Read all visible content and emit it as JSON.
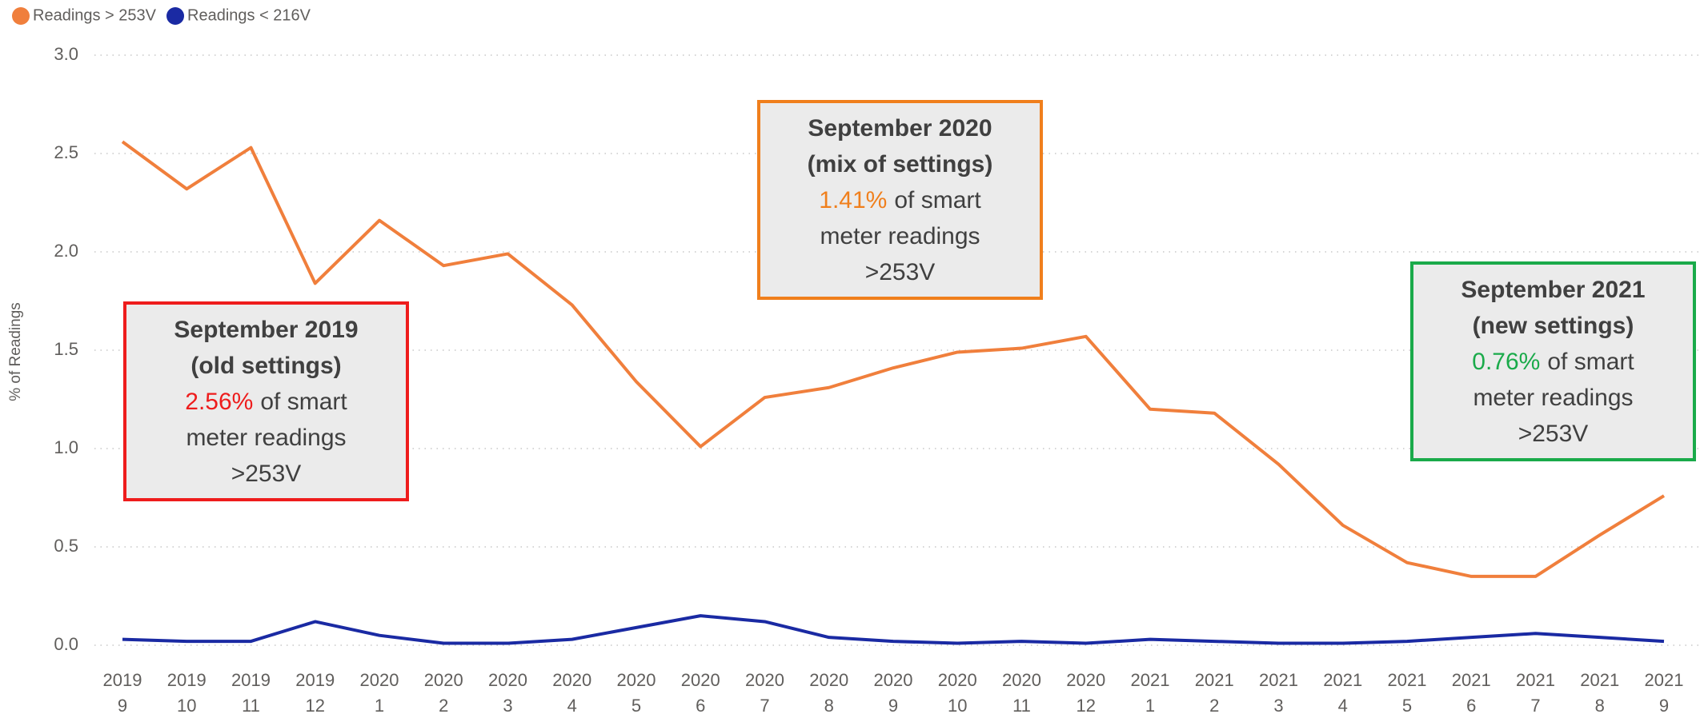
{
  "chart_data": {
    "type": "line",
    "y_label": "% of Readings",
    "categories": [
      [
        "2019",
        "9"
      ],
      [
        "2019",
        "10"
      ],
      [
        "2019",
        "11"
      ],
      [
        "2019",
        "12"
      ],
      [
        "2020",
        "1"
      ],
      [
        "2020",
        "2"
      ],
      [
        "2020",
        "3"
      ],
      [
        "2020",
        "4"
      ],
      [
        "2020",
        "5"
      ],
      [
        "2020",
        "6"
      ],
      [
        "2020",
        "7"
      ],
      [
        "2020",
        "8"
      ],
      [
        "2020",
        "9"
      ],
      [
        "2020",
        "10"
      ],
      [
        "2020",
        "11"
      ],
      [
        "2020",
        "12"
      ],
      [
        "2021",
        "1"
      ],
      [
        "2021",
        "2"
      ],
      [
        "2021",
        "3"
      ],
      [
        "2021",
        "4"
      ],
      [
        "2021",
        "5"
      ],
      [
        "2021",
        "6"
      ],
      [
        "2021",
        "7"
      ],
      [
        "2021",
        "8"
      ],
      [
        "2021",
        "9"
      ]
    ],
    "series": [
      {
        "name": "Readings > 253V",
        "color": "#f07f3c",
        "values": [
          2.56,
          2.32,
          2.53,
          1.84,
          2.16,
          1.93,
          1.99,
          1.73,
          1.34,
          1.01,
          1.26,
          1.31,
          1.41,
          1.49,
          1.51,
          1.57,
          1.2,
          1.18,
          0.92,
          0.61,
          0.42,
          0.35,
          0.35,
          0.56,
          0.76
        ]
      },
      {
        "name": "Readings < 216V",
        "color": "#1a2aa3",
        "values": [
          0.03,
          0.02,
          0.02,
          0.12,
          0.05,
          0.01,
          0.01,
          0.03,
          0.09,
          0.15,
          0.12,
          0.04,
          0.02,
          0.01,
          0.02,
          0.01,
          0.03,
          0.02,
          0.01,
          0.01,
          0.02,
          0.04,
          0.06,
          0.04,
          0.02
        ]
      }
    ],
    "ylim": [
      0,
      3
    ],
    "yticks": [
      {
        "value": 0,
        "label": "0.0"
      },
      0.5,
      {
        "value": 1,
        "label": "1.0"
      },
      1.5,
      {
        "value": 2,
        "label": "2.0"
      },
      2.5,
      {
        "value": 3,
        "label": "3.0"
      }
    ],
    "grid": true,
    "legend": "top-left",
    "annotations": [
      {
        "title": "September 2019",
        "subtitle": "(old settings)",
        "highlight": "2.56%",
        "lines": [
          "of smart",
          "meter readings",
          ">253V"
        ],
        "color": "#ee1c1c",
        "box_color": "#ee1c1c"
      },
      {
        "title": "September 2020",
        "subtitle": "(mix of settings)",
        "highlight": "1.41%",
        "lines": [
          "of smart",
          "meter readings",
          ">253V"
        ],
        "color": "#f07f1c",
        "box_color": "#f07f1c"
      },
      {
        "title": "September 2021",
        "subtitle": "(new settings)",
        "highlight": "0.76%",
        "lines": [
          "of smart",
          "meter readings",
          ">253V"
        ],
        "color": "#1aaa4a",
        "box_color": "#1aaa4a"
      }
    ]
  }
}
